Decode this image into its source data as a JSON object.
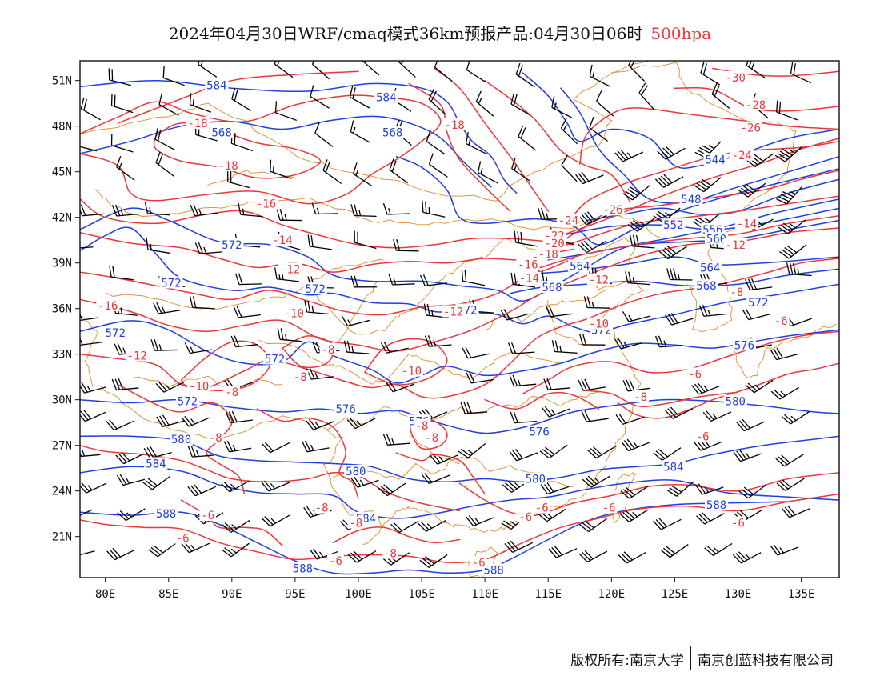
{
  "title": {
    "main": "2024年04月30日WRF/cmaq模式36km预报产品:04月30日06时",
    "level": "500hpa"
  },
  "colors": {
    "height_contour": "#1f3fe0",
    "temperature_contour": "#e8383a",
    "boundary": "#e08a2e",
    "wind_barb": "#000000",
    "level_text": "#e8383a"
  },
  "axes": {
    "x_ticks": [
      "80E",
      "85E",
      "90E",
      "95E",
      "100E",
      "105E",
      "110E",
      "115E",
      "120E",
      "125E",
      "130E",
      "135E"
    ],
    "y_ticks": [
      "51N",
      "48N",
      "45N",
      "42N",
      "39N",
      "36N",
      "33N",
      "30N",
      "27N",
      "24N",
      "21N"
    ],
    "lon_range": [
      78,
      138
    ],
    "lat_range": [
      18.3,
      52.3
    ]
  },
  "height_labels": [
    {
      "text": "584",
      "lon": 88.8,
      "lat": 50.7
    },
    {
      "text": "584",
      "lon": 102.2,
      "lat": 49.9
    },
    {
      "text": "568",
      "lon": 89.2,
      "lat": 47.6
    },
    {
      "text": "568",
      "lon": 102.7,
      "lat": 47.6
    },
    {
      "text": "544",
      "lon": 128.2,
      "lat": 45.8
    },
    {
      "text": "548",
      "lon": 126.3,
      "lat": 43.2
    },
    {
      "text": "552",
      "lon": 124.9,
      "lat": 41.5
    },
    {
      "text": "556",
      "lon": 128.0,
      "lat": 41.2
    },
    {
      "text": "560",
      "lon": 128.3,
      "lat": 40.6
    },
    {
      "text": "564",
      "lon": 117.5,
      "lat": 38.8
    },
    {
      "text": "564",
      "lon": 127.8,
      "lat": 38.7
    },
    {
      "text": "568",
      "lon": 115.3,
      "lat": 37.4
    },
    {
      "text": "568",
      "lon": 127.5,
      "lat": 37.5
    },
    {
      "text": "572",
      "lon": 90.0,
      "lat": 40.2
    },
    {
      "text": "572",
      "lon": 85.2,
      "lat": 37.7
    },
    {
      "text": "572",
      "lon": 96.6,
      "lat": 37.3
    },
    {
      "text": "572",
      "lon": 108.6,
      "lat": 35.9
    },
    {
      "text": "572",
      "lon": 119.2,
      "lat": 34.6
    },
    {
      "text": "572",
      "lon": 131.6,
      "lat": 36.4
    },
    {
      "text": "572",
      "lon": 80.8,
      "lat": 34.4
    },
    {
      "text": "572",
      "lon": 93.4,
      "lat": 32.7
    },
    {
      "text": "572",
      "lon": 86.5,
      "lat": 29.9
    },
    {
      "text": "576",
      "lon": 130.5,
      "lat": 33.6
    },
    {
      "text": "576",
      "lon": 99.0,
      "lat": 29.4
    },
    {
      "text": "576",
      "lon": 104.8,
      "lat": 28.6
    },
    {
      "text": "576",
      "lon": 114.3,
      "lat": 27.9
    },
    {
      "text": "580",
      "lon": 129.8,
      "lat": 29.9
    },
    {
      "text": "580",
      "lon": 86.0,
      "lat": 27.4
    },
    {
      "text": "580",
      "lon": 99.8,
      "lat": 25.3
    },
    {
      "text": "580",
      "lon": 114.0,
      "lat": 24.8
    },
    {
      "text": "584",
      "lon": 84.0,
      "lat": 25.8
    },
    {
      "text": "584",
      "lon": 124.9,
      "lat": 25.6
    },
    {
      "text": "584",
      "lon": 100.6,
      "lat": 22.2
    },
    {
      "text": "588",
      "lon": 84.8,
      "lat": 22.5
    },
    {
      "text": "588",
      "lon": 128.3,
      "lat": 23.1
    },
    {
      "text": "588",
      "lon": 95.6,
      "lat": 18.9
    },
    {
      "text": "588",
      "lon": 110.7,
      "lat": 18.8
    }
  ],
  "temperature_labels": [
    {
      "text": "-30",
      "lon": 129.8,
      "lat": 51.2
    },
    {
      "text": "-28",
      "lon": 131.4,
      "lat": 49.4
    },
    {
      "text": "-26",
      "lon": 131.0,
      "lat": 47.9
    },
    {
      "text": "-26",
      "lon": 120.1,
      "lat": 42.5
    },
    {
      "text": "-24",
      "lon": 130.3,
      "lat": 46.1
    },
    {
      "text": "-24",
      "lon": 116.6,
      "lat": 41.8
    },
    {
      "text": "-22",
      "lon": 115.5,
      "lat": 40.8
    },
    {
      "text": "-20",
      "lon": 115.5,
      "lat": 40.3
    },
    {
      "text": "-18",
      "lon": 87.3,
      "lat": 48.2
    },
    {
      "text": "-18",
      "lon": 107.6,
      "lat": 48.1
    },
    {
      "text": "-18",
      "lon": 89.7,
      "lat": 45.4
    },
    {
      "text": "-18",
      "lon": 115.0,
      "lat": 39.6
    },
    {
      "text": "-16",
      "lon": 92.7,
      "lat": 42.9
    },
    {
      "text": "-16",
      "lon": 113.4,
      "lat": 38.9
    },
    {
      "text": "-16",
      "lon": 80.2,
      "lat": 36.2
    },
    {
      "text": "-14",
      "lon": 94.0,
      "lat": 40.5
    },
    {
      "text": "-14",
      "lon": 113.5,
      "lat": 38.0
    },
    {
      "text": "-14",
      "lon": 130.7,
      "lat": 41.6
    },
    {
      "text": "-12",
      "lon": 94.6,
      "lat": 38.6
    },
    {
      "text": "-12",
      "lon": 119.0,
      "lat": 37.9
    },
    {
      "text": "-12",
      "lon": 107.5,
      "lat": 35.8
    },
    {
      "text": "-12",
      "lon": 82.5,
      "lat": 32.9
    },
    {
      "text": "-12",
      "lon": 129.8,
      "lat": 40.2
    },
    {
      "text": "-10",
      "lon": 94.9,
      "lat": 35.7
    },
    {
      "text": "-10",
      "lon": 119.0,
      "lat": 35.0
    },
    {
      "text": "-10",
      "lon": 104.2,
      "lat": 31.9
    },
    {
      "text": "-10",
      "lon": 87.4,
      "lat": 30.9
    },
    {
      "text": "-8",
      "lon": 129.9,
      "lat": 37.1
    },
    {
      "text": "-8",
      "lon": 97.6,
      "lat": 33.3
    },
    {
      "text": "-8",
      "lon": 95.4,
      "lat": 31.5
    },
    {
      "text": "-8",
      "lon": 90.0,
      "lat": 30.5
    },
    {
      "text": "-8",
      "lon": 122.3,
      "lat": 30.2
    },
    {
      "text": "-8",
      "lon": 105.0,
      "lat": 28.3
    },
    {
      "text": "-8",
      "lon": 105.8,
      "lat": 27.5
    },
    {
      "text": "-8",
      "lon": 88.7,
      "lat": 27.5
    },
    {
      "text": "-8",
      "lon": 97.1,
      "lat": 22.9
    },
    {
      "text": "-8",
      "lon": 99.8,
      "lat": 21.9
    },
    {
      "text": "-8",
      "lon": 102.5,
      "lat": 19.9
    },
    {
      "text": "-6",
      "lon": 133.4,
      "lat": 35.2
    },
    {
      "text": "-6",
      "lon": 126.6,
      "lat": 31.7
    },
    {
      "text": "-6",
      "lon": 127.2,
      "lat": 27.6
    },
    {
      "text": "-6",
      "lon": 88.1,
      "lat": 22.4
    },
    {
      "text": "-6",
      "lon": 86.1,
      "lat": 20.9
    },
    {
      "text": "-6",
      "lon": 114.5,
      "lat": 22.9
    },
    {
      "text": "-6",
      "lon": 113.2,
      "lat": 22.3
    },
    {
      "text": "-6",
      "lon": 119.8,
      "lat": 22.9
    },
    {
      "text": "-6",
      "lon": 130.0,
      "lat": 21.9
    },
    {
      "text": "-6",
      "lon": 98.2,
      "lat": 19.4
    },
    {
      "text": "-6",
      "lon": 109.5,
      "lat": 19.3
    }
  ],
  "footer": {
    "left": "版权所有:南京大学",
    "right": "南京创蓝科技有限公司"
  }
}
